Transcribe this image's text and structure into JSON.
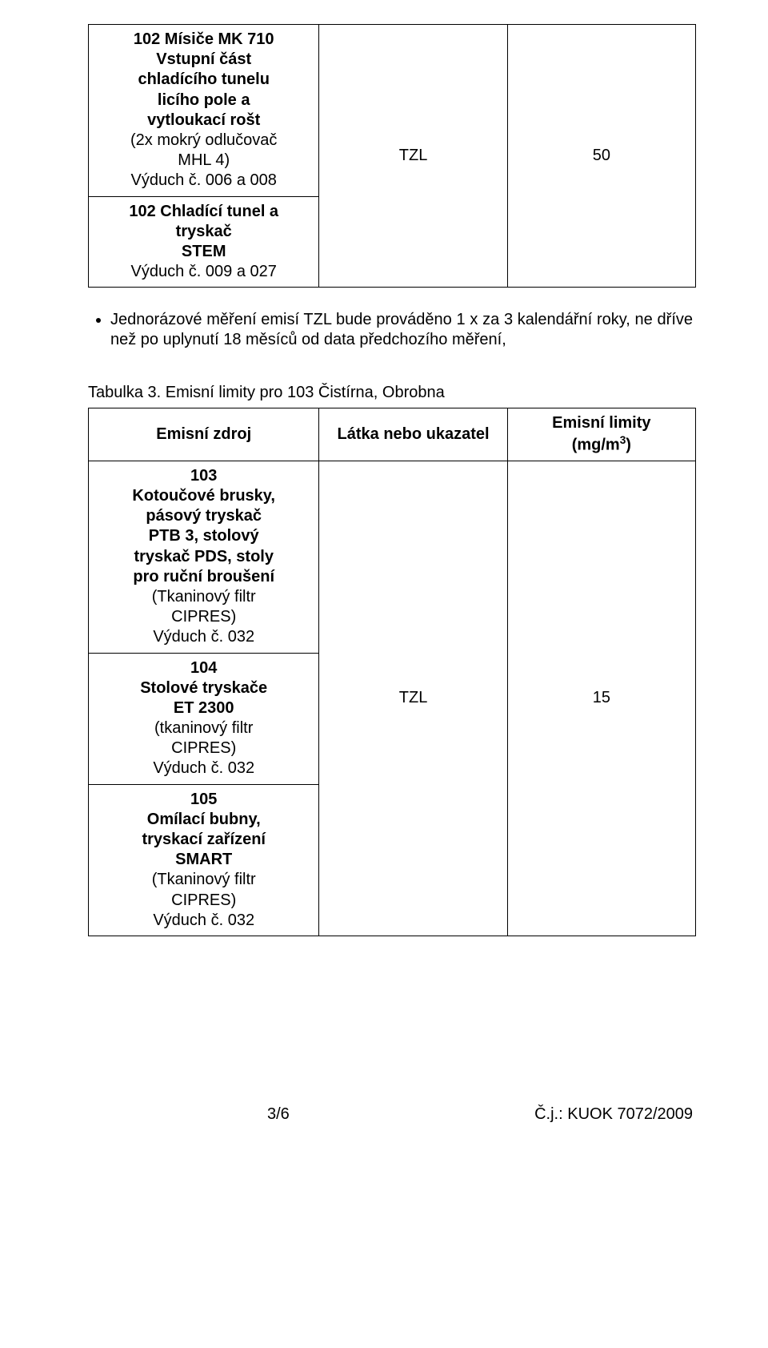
{
  "table1": {
    "rows": [
      {
        "bold_lines": [
          "102 Mísiče MK 710",
          "Vstupní část",
          "chladícího tunelu",
          "licího pole a",
          "vytloukací rošt"
        ],
        "nonbold_lines": [
          "(2x mokrý odlučovač",
          "MHL 4)",
          "Výduch č. 006 a 008"
        ]
      },
      {
        "bold_lines": [
          "102 Chladící tunel a",
          "tryskač",
          "STEM"
        ],
        "nonbold_lines": [
          "Výduch č. 009 a 027"
        ]
      }
    ],
    "substance": "TZL",
    "limit": "50"
  },
  "bullet": "Jednorázové měření emisí TZL bude prováděno 1 x za 3 kalendářní roky, ne dříve než po uplynutí 18 měsíců od data předchozího měření,",
  "table3": {
    "caption": "Tabulka 3. Emisní limity pro 103 Čistírna, Obrobna",
    "headers": {
      "src": "Emisní zdroj",
      "sub": "Látka nebo ukazatel",
      "lim_html": "Emisní limity (mg/m³)"
    },
    "rows": [
      {
        "bold_lines": [
          "103",
          "Kotoučové brusky,",
          "pásový tryskač",
          "PTB 3, stolový",
          "tryskač PDS, stoly",
          "pro ruční broušení"
        ],
        "nonbold_lines": [
          "(Tkaninový filtr",
          "CIPRES)",
          "Výduch č. 032"
        ]
      },
      {
        "bold_lines": [
          "104",
          "Stolové tryskače",
          "ET 2300"
        ],
        "nonbold_lines": [
          "(tkaninový filtr",
          "CIPRES)",
          "Výduch č. 032"
        ]
      },
      {
        "bold_lines": [
          "105",
          "Omílací bubny,",
          "tryskací zařízení",
          "SMART"
        ],
        "nonbold_lines": [
          "(Tkaninový filtr",
          "CIPRES)",
          "Výduch č. 032"
        ]
      }
    ],
    "substance": "TZL",
    "limit": "15"
  },
  "footer": {
    "page": "3/6",
    "ref": "Č.j.: KUOK 7072/2009"
  }
}
